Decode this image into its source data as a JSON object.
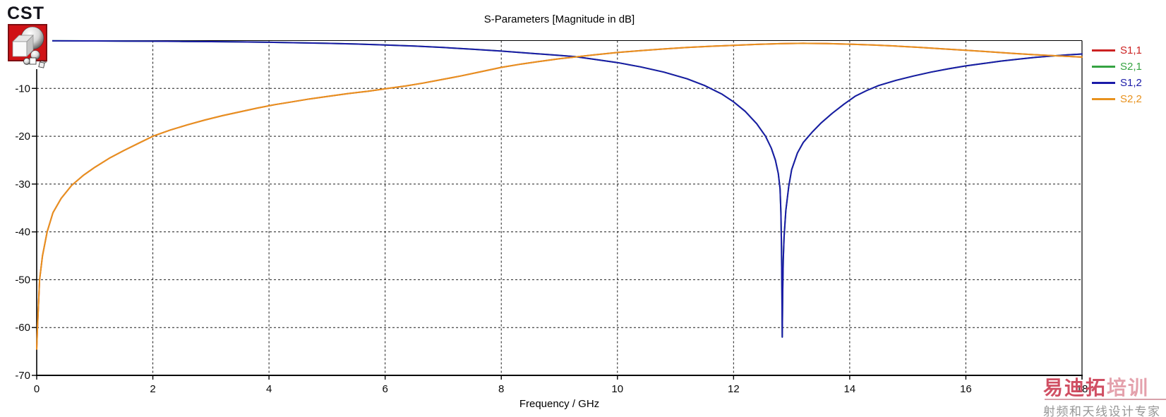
{
  "header": {
    "logo_text": "CST",
    "title": "S-Parameters [Magnitude in dB]"
  },
  "watermark": {
    "brand_primary": "易迪拓",
    "brand_secondary": "培训",
    "tagline": "射频和天线设计专家",
    "brand_color_primary": "#cd4258",
    "brand_color_secondary": "#e39aa6",
    "tagline_color": "#8f8f8f"
  },
  "chart_data": {
    "type": "line",
    "title": "S-Parameters [Magnitude in dB]",
    "xlabel": "Frequency / GHz",
    "ylabel": "",
    "xlim": [
      0,
      18
    ],
    "ylim": [
      -70,
      0
    ],
    "x_ticks": [
      0,
      2,
      4,
      6,
      8,
      10,
      12,
      14,
      16,
      18
    ],
    "y_ticks": [
      -10,
      -20,
      -30,
      -40,
      -50,
      -60,
      -70
    ],
    "x_gridlines": [
      2,
      4,
      6,
      8,
      10,
      12,
      14,
      16
    ],
    "y_gridlines": [
      -10,
      -20,
      -30,
      -40,
      -50,
      -60
    ],
    "grid": true,
    "grid_style": "dashed",
    "axis_color": "#000000",
    "legend_position": "right",
    "draw_order": [
      "S2,1",
      "S1,1",
      "S1,2",
      "S2,2"
    ],
    "series": [
      {
        "name": "S1,1",
        "color": "#cc2222",
        "overlaps": "S2,2",
        "note": "hidden beneath S2,2 curve"
      },
      {
        "name": "S2,1",
        "color": "#35a342",
        "overlaps": "S1,2",
        "note": "hidden beneath S1,2 curve"
      },
      {
        "name": "S1,2",
        "color": "#1a1aa8",
        "points": [
          [
            0,
            -0.05
          ],
          [
            0.5,
            -0.06
          ],
          [
            1,
            -0.08
          ],
          [
            1.5,
            -0.1
          ],
          [
            2,
            -0.13
          ],
          [
            2.5,
            -0.17
          ],
          [
            3,
            -0.22
          ],
          [
            3.5,
            -0.28
          ],
          [
            4,
            -0.36
          ],
          [
            4.5,
            -0.46
          ],
          [
            5,
            -0.58
          ],
          [
            5.5,
            -0.73
          ],
          [
            6,
            -0.92
          ],
          [
            6.5,
            -1.15
          ],
          [
            7,
            -1.45
          ],
          [
            7.5,
            -1.8
          ],
          [
            8,
            -2.2
          ],
          [
            8.5,
            -2.65
          ],
          [
            9,
            -3.1
          ],
          [
            9.27,
            -3.35
          ],
          [
            9.5,
            -3.75
          ],
          [
            10,
            -4.6
          ],
          [
            10.4,
            -5.5
          ],
          [
            10.8,
            -6.6
          ],
          [
            11.2,
            -8.0
          ],
          [
            11.5,
            -9.4
          ],
          [
            11.8,
            -11.2
          ],
          [
            12.0,
            -12.8
          ],
          [
            12.2,
            -14.8
          ],
          [
            12.4,
            -17.4
          ],
          [
            12.55,
            -20.0
          ],
          [
            12.65,
            -22.5
          ],
          [
            12.72,
            -25.0
          ],
          [
            12.77,
            -27.8
          ],
          [
            12.8,
            -31
          ],
          [
            12.815,
            -36
          ],
          [
            12.825,
            -43
          ],
          [
            12.832,
            -52
          ],
          [
            12.838,
            -62
          ],
          [
            12.845,
            -53
          ],
          [
            12.855,
            -46
          ],
          [
            12.87,
            -41
          ],
          [
            12.9,
            -35.5
          ],
          [
            12.95,
            -30.5
          ],
          [
            13.0,
            -27
          ],
          [
            13.1,
            -23.5
          ],
          [
            13.2,
            -21.3
          ],
          [
            13.35,
            -19.2
          ],
          [
            13.5,
            -17.3
          ],
          [
            13.7,
            -15.2
          ],
          [
            13.9,
            -13.3
          ],
          [
            14.1,
            -11.6
          ],
          [
            14.3,
            -10.4
          ],
          [
            14.5,
            -9.4
          ],
          [
            14.8,
            -8.3
          ],
          [
            15.1,
            -7.4
          ],
          [
            15.4,
            -6.6
          ],
          [
            15.7,
            -5.9
          ],
          [
            16.0,
            -5.3
          ],
          [
            16.3,
            -4.8
          ],
          [
            16.6,
            -4.3
          ],
          [
            16.9,
            -3.9
          ],
          [
            17.2,
            -3.5
          ],
          [
            17.5,
            -3.2
          ],
          [
            17.75,
            -3.0
          ],
          [
            18,
            -2.8
          ]
        ]
      },
      {
        "name": "S2,2",
        "color": "#e8921e",
        "points": [
          [
            0,
            -64.5
          ],
          [
            0.013,
            -60
          ],
          [
            0.05,
            -50
          ],
          [
            0.1,
            -45
          ],
          [
            0.18,
            -40
          ],
          [
            0.28,
            -36
          ],
          [
            0.42,
            -33
          ],
          [
            0.6,
            -30.3
          ],
          [
            0.8,
            -28.2
          ],
          [
            1.0,
            -26.5
          ],
          [
            1.25,
            -24.6
          ],
          [
            1.5,
            -23
          ],
          [
            1.75,
            -21.5
          ],
          [
            2.0,
            -20.0
          ],
          [
            2.3,
            -18.7
          ],
          [
            2.6,
            -17.6
          ],
          [
            2.9,
            -16.6
          ],
          [
            3.2,
            -15.7
          ],
          [
            3.5,
            -14.9
          ],
          [
            3.8,
            -14.1
          ],
          [
            4.1,
            -13.4
          ],
          [
            4.4,
            -12.8
          ],
          [
            4.7,
            -12.2
          ],
          [
            5.0,
            -11.7
          ],
          [
            5.35,
            -11.1
          ],
          [
            5.7,
            -10.6
          ],
          [
            6.05,
            -10.0
          ],
          [
            6.35,
            -9.5
          ],
          [
            6.65,
            -8.9
          ],
          [
            7.0,
            -8.1
          ],
          [
            7.3,
            -7.4
          ],
          [
            7.65,
            -6.5
          ],
          [
            8.0,
            -5.6
          ],
          [
            8.35,
            -4.9
          ],
          [
            8.7,
            -4.3
          ],
          [
            9.0,
            -3.8
          ],
          [
            9.3,
            -3.4
          ],
          [
            9.6,
            -3.0
          ],
          [
            10.0,
            -2.5
          ],
          [
            10.4,
            -2.1
          ],
          [
            10.8,
            -1.75
          ],
          [
            11.2,
            -1.45
          ],
          [
            11.6,
            -1.2
          ],
          [
            12.0,
            -1.0
          ],
          [
            12.4,
            -0.8
          ],
          [
            12.8,
            -0.65
          ],
          [
            13.2,
            -0.58
          ],
          [
            13.6,
            -0.62
          ],
          [
            14.0,
            -0.75
          ],
          [
            14.4,
            -0.92
          ],
          [
            14.8,
            -1.15
          ],
          [
            15.2,
            -1.42
          ],
          [
            15.6,
            -1.72
          ],
          [
            16.0,
            -2.02
          ],
          [
            16.4,
            -2.35
          ],
          [
            16.8,
            -2.67
          ],
          [
            17.2,
            -2.97
          ],
          [
            17.6,
            -3.22
          ],
          [
            18,
            -3.45
          ]
        ]
      }
    ]
  }
}
